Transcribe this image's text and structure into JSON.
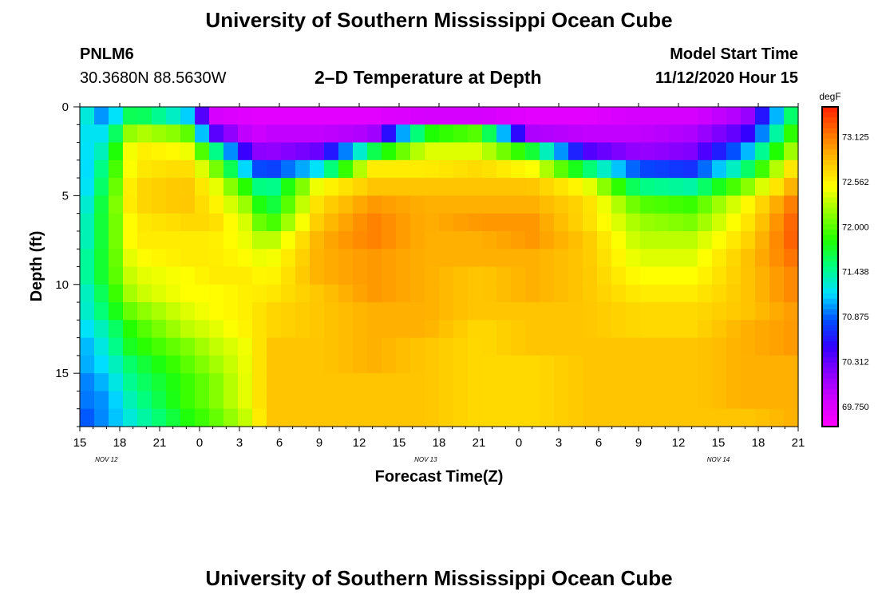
{
  "titles": {
    "top": "University of Southern Mississippi Ocean Cube",
    "bottom": "University of Southern Mississippi Ocean Cube"
  },
  "station": {
    "id": "PNLM6",
    "coords": "30.3680N 88.5630W"
  },
  "plot_title": "2–D Temperature at Depth",
  "model": {
    "label": "Model Start Time",
    "value": "11/12/2020 Hour 15"
  },
  "chart_data": {
    "type": "heatmap",
    "title": "2–D Temperature at Depth",
    "xlabel": "Forecast Time(Z)",
    "ylabel": "Depth (ft)",
    "x_ticks": [
      "15",
      "18",
      "21",
      "0",
      "3",
      "6",
      "9",
      "12",
      "15",
      "18",
      "21",
      "0",
      "3",
      "6",
      "9",
      "12",
      "15",
      "18",
      "21"
    ],
    "x_day_labels": [
      {
        "label": "NOV  12",
        "hour_offset": 2
      },
      {
        "label": "NOV  13",
        "hour_offset": 26
      },
      {
        "label": "NOV  14",
        "hour_offset": 48
      }
    ],
    "x_range_hours": [
      0,
      54
    ],
    "y_ticks": [
      0,
      5,
      10,
      15
    ],
    "ylim": [
      0,
      18
    ],
    "y_inverted": true,
    "colorbar": {
      "unit": "degF",
      "ticks": [
        73.125,
        72.562,
        72.0,
        71.438,
        70.875,
        70.312,
        69.75
      ],
      "range": [
        69.5,
        73.5
      ],
      "colors": [
        "#ff00ff",
        "#d000ff",
        "#8a00ff",
        "#3200ff",
        "#0050ff",
        "#00e0ff",
        "#00ff80",
        "#20ff00",
        "#90ff00",
        "#ffff00",
        "#ffc000",
        "#ff7000",
        "#ff2000"
      ]
    },
    "depth_levels_ft": [
      0.5,
      1.5,
      2.5,
      3.5,
      4.5,
      5.5,
      6.5,
      7.5,
      8.5,
      9.5,
      10.5,
      11.5,
      12.5,
      13.5,
      14.5,
      15.5,
      16.5,
      17.5
    ],
    "time_keyframes_hours": [
      0,
      2,
      4,
      8,
      10,
      13,
      14,
      18,
      22,
      26,
      30,
      34,
      38,
      42,
      46,
      50,
      54
    ],
    "temperature_degF": [
      [
        71.4,
        70.9,
        71.7,
        71.2,
        69.8,
        69.7,
        69.7,
        69.7,
        69.7,
        69.8,
        69.8,
        69.7,
        69.7,
        69.8,
        69.8,
        70.0,
        71.8
      ],
      [
        71.2,
        71.2,
        72.3,
        72.1,
        70.4,
        69.8,
        69.9,
        69.9,
        70.0,
        71.8,
        72.0,
        70.0,
        69.9,
        69.9,
        70.0,
        70.4,
        72.1
      ],
      [
        71.1,
        71.4,
        72.6,
        72.5,
        71.6,
        70.2,
        70.1,
        70.3,
        71.6,
        72.4,
        72.4,
        71.7,
        70.4,
        70.1,
        70.2,
        71.0,
        72.4
      ],
      [
        71.0,
        71.6,
        72.6,
        72.7,
        72.2,
        70.9,
        70.7,
        71.2,
        72.6,
        72.6,
        72.7,
        72.5,
        71.6,
        70.8,
        70.7,
        71.5,
        72.8
      ],
      [
        71.0,
        71.7,
        72.7,
        72.8,
        72.5,
        71.7,
        71.3,
        72.5,
        72.8,
        72.8,
        72.8,
        72.8,
        72.5,
        71.5,
        71.4,
        72.1,
        73.0
      ],
      [
        71.1,
        71.8,
        72.7,
        72.8,
        72.6,
        72.1,
        71.5,
        72.7,
        73.0,
        72.9,
        72.9,
        72.9,
        72.7,
        72.0,
        71.9,
        72.5,
        73.2
      ],
      [
        71.2,
        71.8,
        72.6,
        72.7,
        72.7,
        72.3,
        71.8,
        72.8,
        73.1,
        72.9,
        73.0,
        73.0,
        72.7,
        72.2,
        72.1,
        72.6,
        73.3
      ],
      [
        71.2,
        71.8,
        72.6,
        72.6,
        72.6,
        72.4,
        72.2,
        72.9,
        73.1,
        72.9,
        72.9,
        73.0,
        72.8,
        72.3,
        72.3,
        72.7,
        73.3
      ],
      [
        71.3,
        71.8,
        72.5,
        72.6,
        72.6,
        72.5,
        72.4,
        72.9,
        73.0,
        72.9,
        72.9,
        72.9,
        72.8,
        72.4,
        72.4,
        72.8,
        73.2
      ],
      [
        71.3,
        71.8,
        72.4,
        72.5,
        72.6,
        72.6,
        72.5,
        72.9,
        73.0,
        72.9,
        72.8,
        72.9,
        72.8,
        72.5,
        72.5,
        72.8,
        73.1
      ],
      [
        71.2,
        71.7,
        72.3,
        72.5,
        72.5,
        72.6,
        72.6,
        72.8,
        73.0,
        72.9,
        72.8,
        72.9,
        72.8,
        72.6,
        72.6,
        72.8,
        73.1
      ],
      [
        71.2,
        71.6,
        72.1,
        72.4,
        72.5,
        72.6,
        72.7,
        72.8,
        72.9,
        72.9,
        72.8,
        72.8,
        72.8,
        72.7,
        72.7,
        72.8,
        73.0
      ],
      [
        71.1,
        71.4,
        71.9,
        72.3,
        72.4,
        72.6,
        72.7,
        72.8,
        72.9,
        72.9,
        72.7,
        72.8,
        72.8,
        72.7,
        72.7,
        72.9,
        73.0
      ],
      [
        71.0,
        71.3,
        71.8,
        72.1,
        72.3,
        72.5,
        72.8,
        72.8,
        72.9,
        72.8,
        72.7,
        72.8,
        72.8,
        72.8,
        72.8,
        72.9,
        73.0
      ],
      [
        71.0,
        71.2,
        71.6,
        72.0,
        72.2,
        72.5,
        72.8,
        72.8,
        72.9,
        72.8,
        72.7,
        72.7,
        72.8,
        72.8,
        72.8,
        72.9,
        72.9
      ],
      [
        70.9,
        71.1,
        71.5,
        71.9,
        72.1,
        72.5,
        72.8,
        72.8,
        72.8,
        72.8,
        72.7,
        72.7,
        72.8,
        72.8,
        72.8,
        72.9,
        72.9
      ],
      [
        70.9,
        71.0,
        71.4,
        71.9,
        72.1,
        72.5,
        72.8,
        72.8,
        72.8,
        72.8,
        72.7,
        72.7,
        72.8,
        72.8,
        72.8,
        72.9,
        72.9
      ],
      [
        70.8,
        71.0,
        71.3,
        71.8,
        72.0,
        72.4,
        72.8,
        72.8,
        72.8,
        72.8,
        72.7,
        72.7,
        72.8,
        72.8,
        72.8,
        72.8,
        72.9
      ]
    ]
  }
}
